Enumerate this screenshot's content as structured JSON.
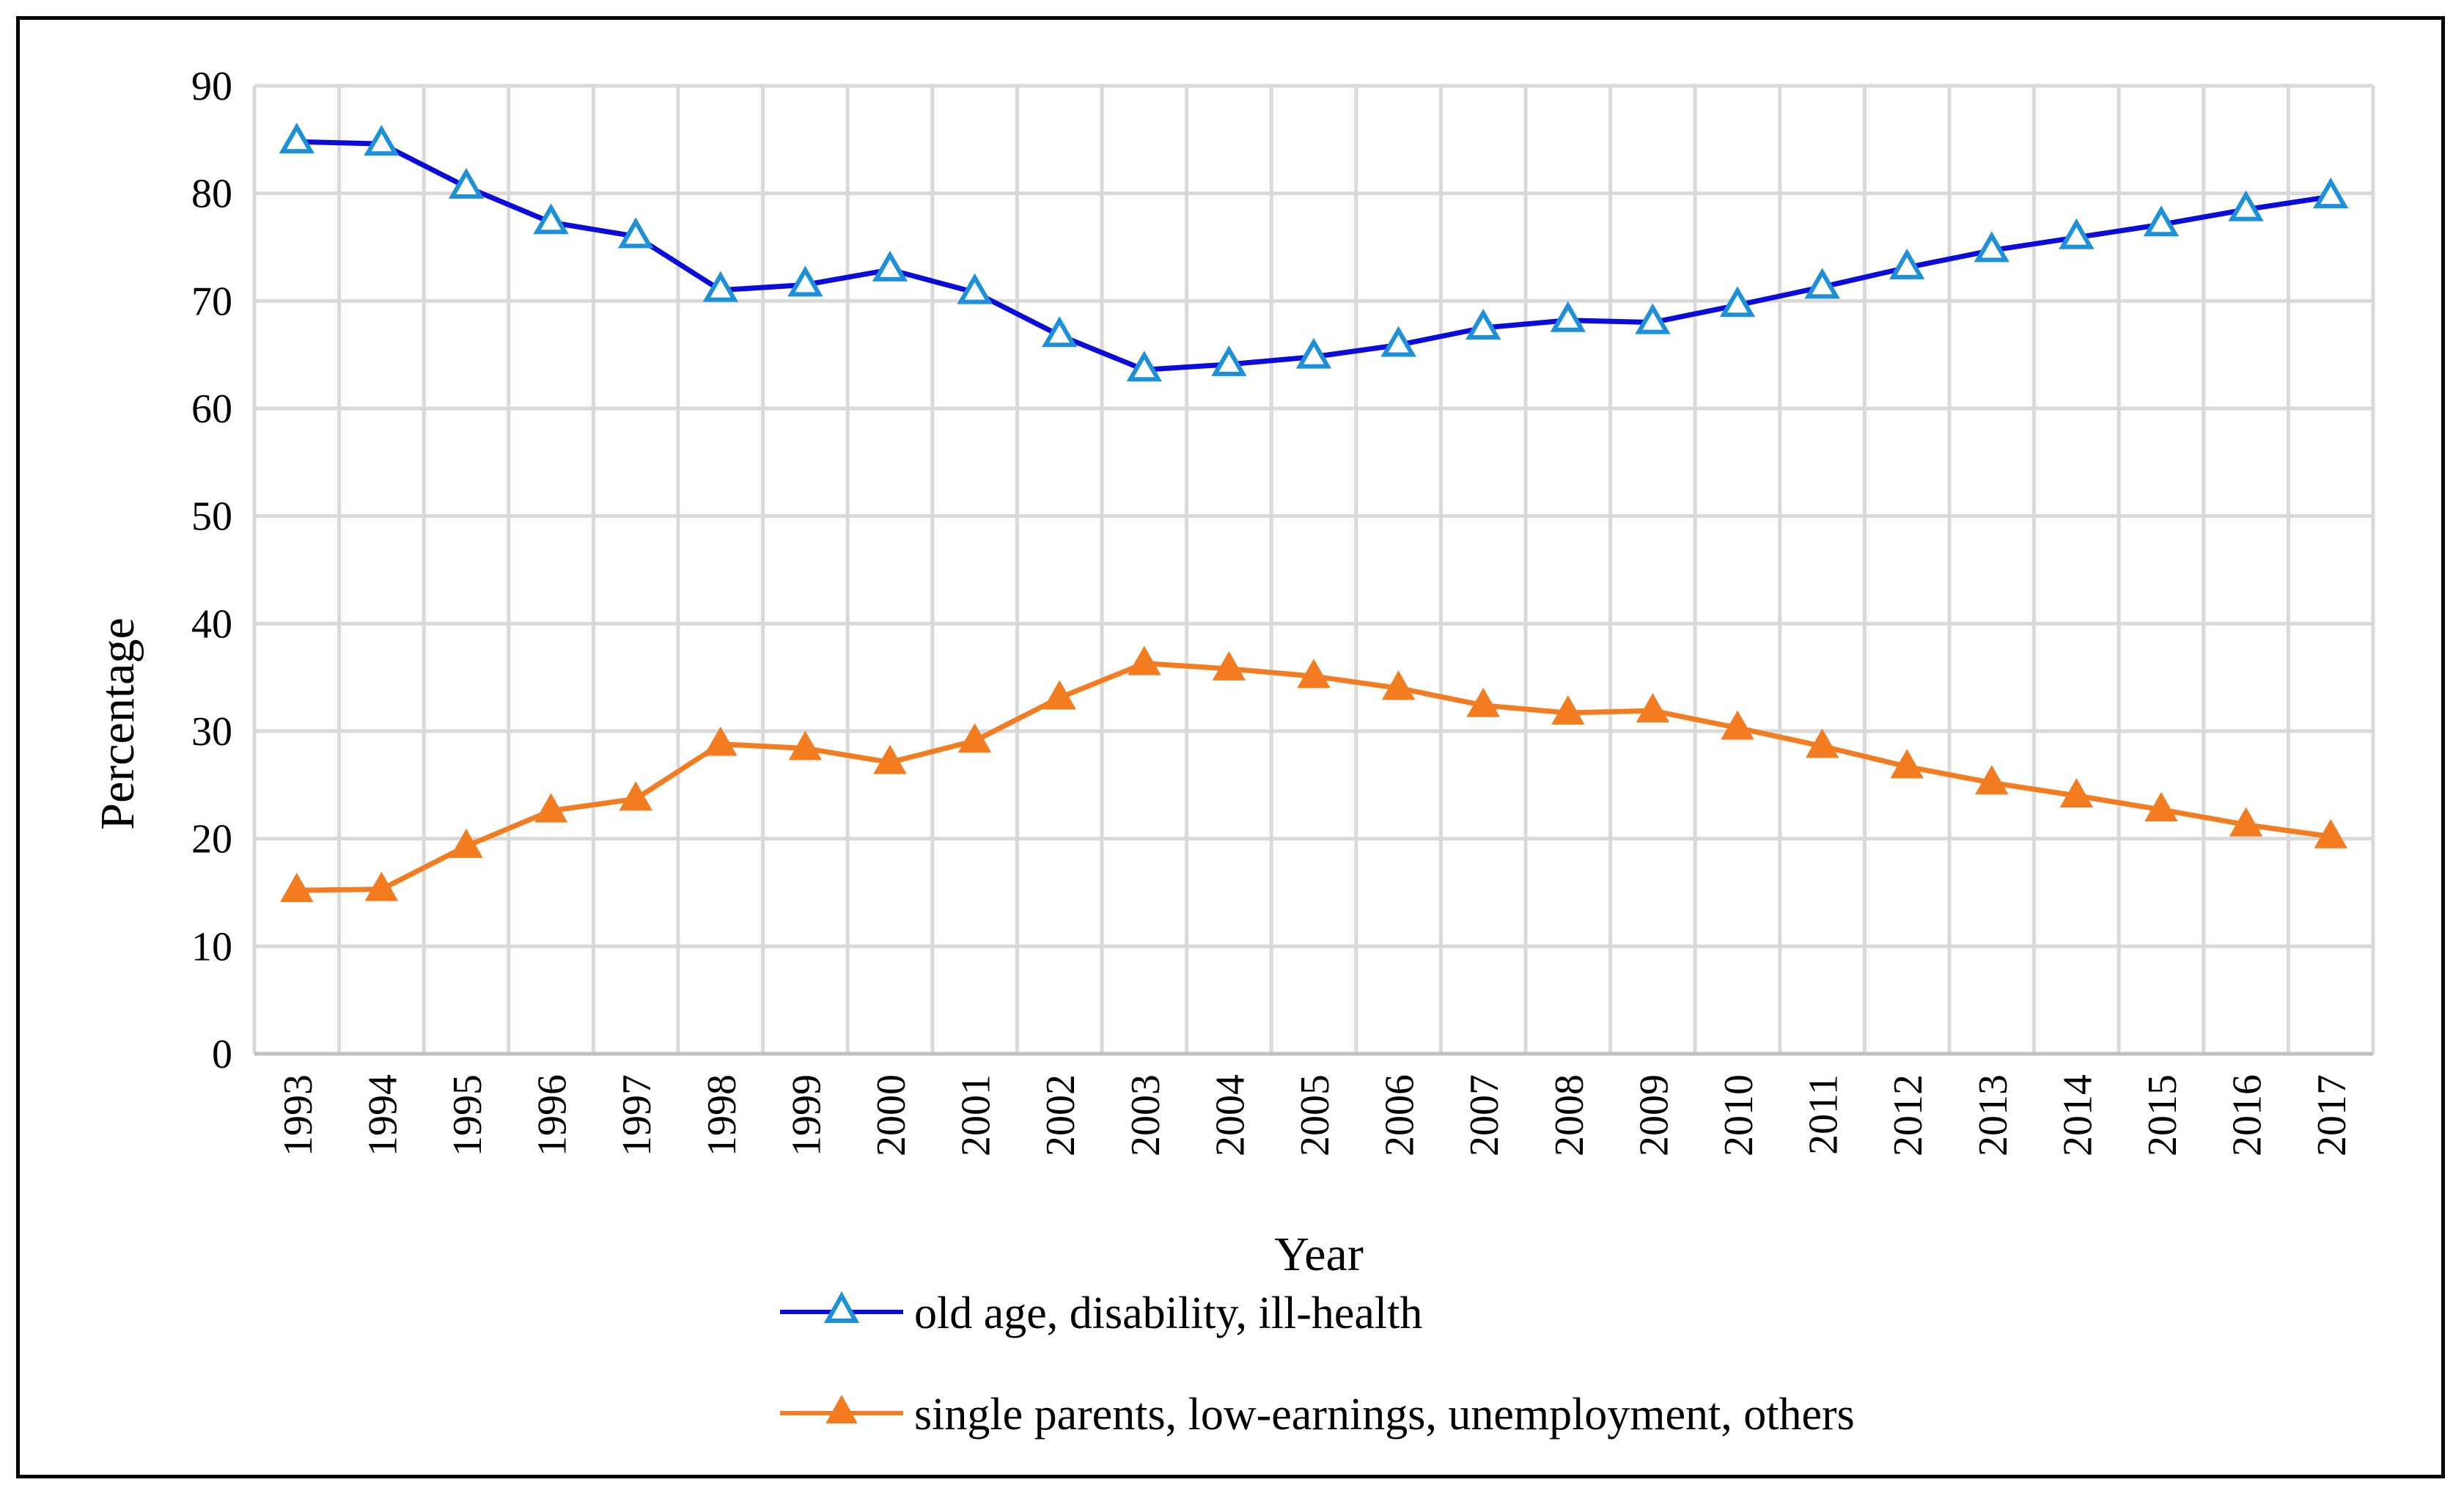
{
  "chart_data": {
    "type": "line",
    "title": "",
    "xlabel": "Year",
    "ylabel": "Percentage",
    "ylim": [
      0,
      90
    ],
    "yticks": [
      0,
      10,
      20,
      30,
      40,
      50,
      60,
      70,
      80,
      90
    ],
    "grid": true,
    "legend_position": "bottom",
    "categories": [
      "1993",
      "1994",
      "1995",
      "1996",
      "1997",
      "1998",
      "1999",
      "2000",
      "2001",
      "2002",
      "2003",
      "2004",
      "2005",
      "2006",
      "2007",
      "2008",
      "2009",
      "2010",
      "2011",
      "2012",
      "2013",
      "2014",
      "2015",
      "2016",
      "2017"
    ],
    "series": [
      {
        "name": "old age, disability, ill-health",
        "line_color": "#0b0bdc",
        "marker": "open-triangle",
        "marker_color": "#1e90d8",
        "values": [
          84.8,
          84.6,
          80.6,
          77.3,
          76.0,
          71.0,
          71.5,
          72.9,
          70.8,
          66.8,
          63.6,
          64.1,
          64.8,
          65.9,
          67.5,
          68.2,
          68.0,
          69.6,
          71.3,
          73.1,
          74.7,
          75.9,
          77.1,
          78.5,
          79.7
        ]
      },
      {
        "name": "single parents, low-earnings, unemployment, others",
        "line_color": "#f47c20",
        "marker": "filled-triangle",
        "marker_color": "#f47c20",
        "values": [
          15.2,
          15.3,
          19.3,
          22.6,
          23.7,
          28.8,
          28.4,
          27.1,
          29.1,
          33.1,
          36.3,
          35.8,
          35.1,
          34.0,
          32.4,
          31.7,
          31.9,
          30.3,
          28.6,
          26.7,
          25.2,
          24.0,
          22.7,
          21.3,
          20.2
        ]
      }
    ]
  }
}
